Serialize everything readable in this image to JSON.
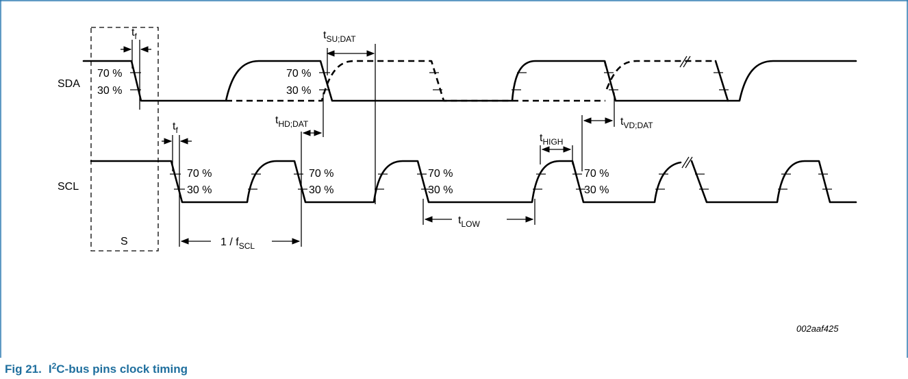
{
  "colors": {
    "border": "#2a78b0",
    "caption": "#1f6f9e",
    "line": "#000000"
  },
  "signals": {
    "sda": "SDA",
    "scl": "SCL"
  },
  "levels": {
    "high_pct": "70 %",
    "low_pct": "30 %"
  },
  "timing": {
    "t": "t",
    "f": "f",
    "su_dat": "SU;DAT",
    "hd_dat": "HD;DAT",
    "vd_dat": "VD;DAT",
    "high": "HIGH",
    "low": "LOW",
    "period": "1 / f",
    "scl_sub": "SCL"
  },
  "start_label": "S",
  "figure_code": "002aaf425",
  "caption": {
    "number": "Fig 21.",
    "title_pre": "I",
    "title_sup": "2",
    "title_post": "C-bus pins clock timing"
  }
}
